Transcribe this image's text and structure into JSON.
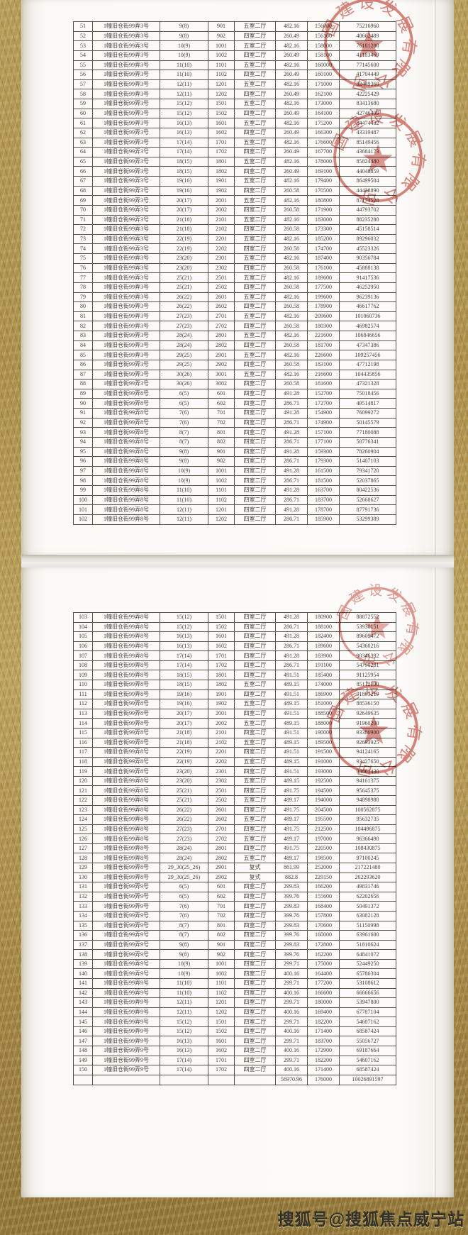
{
  "page1": {
    "table": {
      "rows": [
        [
          "51",
          "1幢旧仓街99弄3号",
          "9(8)",
          "901",
          "五室二厅",
          "482.16",
          "156000",
          "75216960"
        ],
        [
          "52",
          "1幢旧仓街99弄3号",
          "9(8)",
          "902",
          "四室二厅",
          "260.49",
          "156100",
          "40662489"
        ],
        [
          "53",
          "1幢旧仓街99弄3号",
          "10(9)",
          "1001",
          "五室二厅",
          "482.16",
          "158000",
          "76181280"
        ],
        [
          "54",
          "1幢旧仓街99弄3号",
          "10(9)",
          "1002",
          "四室二厅",
          "260.49",
          "158100",
          "41183469"
        ],
        [
          "55",
          "1幢旧仓街99弄3号",
          "11(10)",
          "1101",
          "五室二厅",
          "482.16",
          "160000",
          "77145600"
        ],
        [
          "56",
          "1幢旧仓街99弄3号",
          "11(10)",
          "1102",
          "四室二厅",
          "260.49",
          "160100",
          "41704449"
        ],
        [
          "57",
          "1幢旧仓街99弄3号",
          "12(11)",
          "1201",
          "五室二厅",
          "482.16",
          "171000",
          "82449360"
        ],
        [
          "58",
          "1幢旧仓街99弄3号",
          "12(11)",
          "1202",
          "四室二厅",
          "260.49",
          "162100",
          "42225429"
        ],
        [
          "59",
          "1幢旧仓街99弄3号",
          "15(12)",
          "1501",
          "五室二厅",
          "482.16",
          "173000",
          "83413680"
        ],
        [
          "60",
          "1幢旧仓街99弄3号",
          "15(12)",
          "1502",
          "四室二厅",
          "260.49",
          "164100",
          "42746409"
        ],
        [
          "61",
          "1幢旧仓街99弄3号",
          "16(13)",
          "1601",
          "五室二厅",
          "482.16",
          "175200",
          "84474432"
        ],
        [
          "62",
          "1幢旧仓街99弄3号",
          "16(13)",
          "1602",
          "四室二厅",
          "260.49",
          "166300",
          "43319487"
        ],
        [
          "63",
          "1幢旧仓街99弄3号",
          "17(14)",
          "1701",
          "五室二厅",
          "482.16",
          "176600",
          "85149456"
        ],
        [
          "64",
          "1幢旧仓街99弄3号",
          "17(14)",
          "1702",
          "四室二厅",
          "260.49",
          "167700",
          "43684173"
        ],
        [
          "65",
          "1幢旧仓街99弄3号",
          "18(15)",
          "1801",
          "五室二厅",
          "482.16",
          "178000",
          "85824480"
        ],
        [
          "66",
          "1幢旧仓街99弄3号",
          "18(15)",
          "1802",
          "四室二厅",
          "260.49",
          "169100",
          "44048859"
        ],
        [
          "67",
          "1幢旧仓街99弄3号",
          "19(16)",
          "1901",
          "五室二厅",
          "482.16",
          "179400",
          "86499504"
        ],
        [
          "68",
          "1幢旧仓街99弄3号",
          "19(16)",
          "1902",
          "四室二厅",
          "260.58",
          "170500",
          "44428890"
        ],
        [
          "69",
          "1幢旧仓街99弄3号",
          "20(17)",
          "2001",
          "五室二厅",
          "482.16",
          "180800",
          "87174528"
        ],
        [
          "70",
          "1幢旧仓街99弄3号",
          "20(17)",
          "2002",
          "四室二厅",
          "260.58",
          "171900",
          "44793702"
        ],
        [
          "71",
          "1幢旧仓街99弄3号",
          "21(18)",
          "2101",
          "五室二厅",
          "482.16",
          "183000",
          "88235280"
        ],
        [
          "72",
          "1幢旧仓街99弄3号",
          "21(18)",
          "2102",
          "四室二厅",
          "260.58",
          "173300",
          "45158514"
        ],
        [
          "73",
          "1幢旧仓街99弄3号",
          "22(19)",
          "2201",
          "五室二厅",
          "482.16",
          "185200",
          "89296032"
        ],
        [
          "74",
          "1幢旧仓街99弄3号",
          "22(19)",
          "2202",
          "四室二厅",
          "260.58",
          "174700",
          "45523326"
        ],
        [
          "75",
          "1幢旧仓街99弄3号",
          "23(20)",
          "2301",
          "五室二厅",
          "482.16",
          "187400",
          "90356784"
        ],
        [
          "76",
          "1幢旧仓街99弄3号",
          "23(20)",
          "2302",
          "四室二厅",
          "260.58",
          "176100",
          "45888138"
        ],
        [
          "77",
          "1幢旧仓街99弄3号",
          "25(21)",
          "2501",
          "五室二厅",
          "482.16",
          "189600",
          "91417536"
        ],
        [
          "78",
          "1幢旧仓街99弄3号",
          "25(21)",
          "2502",
          "四室二厅",
          "260.58",
          "177500",
          "46252950"
        ],
        [
          "79",
          "1幢旧仓街99弄3号",
          "26(22)",
          "2601",
          "五室二厅",
          "482.16",
          "199600",
          "96239136"
        ],
        [
          "80",
          "1幢旧仓街99弄3号",
          "26(22)",
          "2602",
          "四室二厅",
          "260.58",
          "178900",
          "46617762"
        ],
        [
          "81",
          "1幢旧仓街99弄3号",
          "27(23)",
          "2701",
          "五室二厅",
          "482.16",
          "209600",
          "101060736"
        ],
        [
          "82",
          "1幢旧仓街99弄3号",
          "27(23)",
          "2702",
          "四室二厅",
          "260.58",
          "180300",
          "46982574"
        ],
        [
          "83",
          "1幢旧仓街99弄3号",
          "28(24)",
          "2801",
          "五室二厅",
          "482.16",
          "221600",
          "106846656"
        ],
        [
          "84",
          "1幢旧仓街99弄3号",
          "28(24)",
          "2802",
          "四室二厅",
          "260.58",
          "181700",
          "47347386"
        ],
        [
          "85",
          "1幢旧仓街99弄3号",
          "29(25)",
          "2901",
          "五室二厅",
          "482.16",
          "226600",
          "109257456"
        ],
        [
          "86",
          "1幢旧仓街99弄3号",
          "29(25)",
          "2902",
          "四室二厅",
          "260.58",
          "183100",
          "47712198"
        ],
        [
          "87",
          "1幢旧仓街99弄3号",
          "30(26)",
          "3001",
          "五室二厅",
          "482.16",
          "216600",
          "104435856"
        ],
        [
          "88",
          "1幢旧仓街99弄3号",
          "30(26)",
          "3002",
          "四室二厅",
          "260.58",
          "181600",
          "47321328"
        ],
        [
          "89",
          "1幢旧仓街99弄8号",
          "6(5)",
          "601",
          "四室二厅",
          "491.28",
          "152700",
          "75018456"
        ],
        [
          "90",
          "1幢旧仓街99弄8号",
          "6(5)",
          "602",
          "四室二厅",
          "286.71",
          "172700",
          "49514817"
        ],
        [
          "91",
          "1幢旧仓街99弄8号",
          "7(6)",
          "701",
          "四室二厅",
          "491.28",
          "154900",
          "76099272"
        ],
        [
          "92",
          "1幢旧仓街99弄8号",
          "7(6)",
          "702",
          "四室二厅",
          "286.71",
          "174900",
          "50145579"
        ],
        [
          "93",
          "1幢旧仓街99弄8号",
          "8(7)",
          "801",
          "四室二厅",
          "491.28",
          "157100",
          "77180088"
        ],
        [
          "94",
          "1幢旧仓街99弄8号",
          "8(7)",
          "802",
          "四室二厅",
          "286.71",
          "177100",
          "50776341"
        ],
        [
          "95",
          "1幢旧仓街99弄8号",
          "9(8)",
          "901",
          "四室二厅",
          "491.28",
          "159300",
          "78260904"
        ],
        [
          "96",
          "1幢旧仓街99弄8号",
          "9(8)",
          "902",
          "四室二厅",
          "286.71",
          "179300",
          "51407103"
        ],
        [
          "97",
          "1幢旧仓街99弄8号",
          "10(9)",
          "1001",
          "四室二厅",
          "491.28",
          "161500",
          "79341720"
        ],
        [
          "98",
          "1幢旧仓街99弄8号",
          "10(9)",
          "1002",
          "四室二厅",
          "286.71",
          "181500",
          "52037865"
        ],
        [
          "99",
          "1幢旧仓街99弄8号",
          "11(10)",
          "1101",
          "四室二厅",
          "491.28",
          "163700",
          "80422536"
        ],
        [
          "100",
          "1幢旧仓街99弄8号",
          "11(10)",
          "1102",
          "四室二厅",
          "286.71",
          "183700",
          "52668627"
        ],
        [
          "101",
          "1幢旧仓街99弄8号",
          "12(11)",
          "1201",
          "四室二厅",
          "491.28",
          "178700",
          "87791736"
        ],
        [
          "102",
          "1幢旧仓街99弄8号",
          "12(11)",
          "1202",
          "四室二厅",
          "286.71",
          "185900",
          "53299389"
        ]
      ]
    }
  },
  "page2": {
    "table": {
      "rows": [
        [
          "103",
          "1幢旧仓街99弄8号",
          "15(12)",
          "1501",
          "四室二厅",
          "491.28",
          "180900",
          "88872552"
        ],
        [
          "104",
          "1幢旧仓街99弄8号",
          "15(12)",
          "1502",
          "四室二厅",
          "286.71",
          "188100",
          "53930151"
        ],
        [
          "105",
          "1幢旧仓街99弄8号",
          "16(13)",
          "1601",
          "四室二厅",
          "491.28",
          "182400",
          "89609472"
        ],
        [
          "106",
          "1幢旧仓街99弄8号",
          "16(13)",
          "1602",
          "四室二厅",
          "286.71",
          "189600",
          "54360216"
        ],
        [
          "107",
          "1幢旧仓街99弄8号",
          "17(14)",
          "1701",
          "四室二厅",
          "491.28",
          "183900",
          "90346392"
        ],
        [
          "108",
          "1幢旧仓街99弄8号",
          "17(14)",
          "1702",
          "四室二厅",
          "286.71",
          "191100",
          "54790281"
        ],
        [
          "109",
          "1幢旧仓街99弄8号",
          "18(15)",
          "1801",
          "四室二厅",
          "491.51",
          "185400",
          "91125954"
        ],
        [
          "110",
          "1幢旧仓街99弄8号",
          "18(15)",
          "1802",
          "五室二厅",
          "489.15",
          "174000",
          "85112100"
        ],
        [
          "111",
          "1幢旧仓街99弄8号",
          "19(16)",
          "1901",
          "四室二厅",
          "491.51",
          "186900",
          "91863219"
        ],
        [
          "112",
          "1幢旧仓街99弄8号",
          "19(16)",
          "1902",
          "五室二厅",
          "489.15",
          "181000",
          "88536150"
        ],
        [
          "113",
          "1幢旧仓街99弄8号",
          "20(17)",
          "2001",
          "四室二厅",
          "491.51",
          "188500",
          "92649635"
        ],
        [
          "114",
          "1幢旧仓街99弄8号",
          "20(17)",
          "2002",
          "五室二厅",
          "489.15",
          "188000",
          "91960200"
        ],
        [
          "115",
          "1幢旧仓街99弄8号",
          "21(18)",
          "2101",
          "四室二厅",
          "491.51",
          "190000",
          "93386900"
        ],
        [
          "116",
          "1幢旧仓街99弄8号",
          "21(18)",
          "2102",
          "五室二厅",
          "489.15",
          "189500",
          "92693925"
        ],
        [
          "117",
          "1幢旧仓街99弄8号",
          "22(19)",
          "2201",
          "四室二厅",
          "491.51",
          "191500",
          "94124165"
        ],
        [
          "118",
          "1幢旧仓街99弄8号",
          "22(19)",
          "2202",
          "五室二厅",
          "489.15",
          "191000",
          "93427650"
        ],
        [
          "119",
          "1幢旧仓街99弄8号",
          "23(20)",
          "2301",
          "四室二厅",
          "491.51",
          "193000",
          "94861430"
        ],
        [
          "120",
          "1幢旧仓街99弄8号",
          "23(20)",
          "2302",
          "五室二厅",
          "489.15",
          "192500",
          "94161375"
        ],
        [
          "121",
          "1幢旧仓街99弄8号",
          "25(21)",
          "2501",
          "四室二厅",
          "491.75",
          "194500",
          "95645375"
        ],
        [
          "122",
          "1幢旧仓街99弄8号",
          "25(21)",
          "2502",
          "五室二厅",
          "489.17",
          "194000",
          "94898980"
        ],
        [
          "123",
          "1幢旧仓街99弄8号",
          "26(22)",
          "2601",
          "四室二厅",
          "491.75",
          "204500",
          "100562875"
        ],
        [
          "124",
          "1幢旧仓街99弄8号",
          "26(22)",
          "2602",
          "五室二厅",
          "489.17",
          "195500",
          "95632735"
        ],
        [
          "125",
          "1幢旧仓街99弄8号",
          "27(23)",
          "2701",
          "四室二厅",
          "491.75",
          "212500",
          "104496875"
        ],
        [
          "126",
          "1幢旧仓街99弄8号",
          "27(23)",
          "2702",
          "五室二厅",
          "489.17",
          "197000",
          "96366490"
        ],
        [
          "127",
          "1幢旧仓街99弄8号",
          "28(24)",
          "2801",
          "四室二厅",
          "491.75",
          "220500",
          "108430875"
        ],
        [
          "128",
          "1幢旧仓街99弄8号",
          "28(24)",
          "2802",
          "五室二厅",
          "489.17",
          "198500",
          "97100245"
        ],
        [
          "129",
          "1幢旧仓街99弄8号",
          "29_30(25_26)",
          "2901",
          "复式",
          "861.99",
          "252000",
          "217221480"
        ],
        [
          "130",
          "1幢旧仓街99弄8号",
          "29_30(25_26)",
          "2902",
          "复式",
          "882.8",
          "229150",
          "202293620"
        ],
        [
          "131",
          "1幢旧仓街99弄9号",
          "6(5)",
          "601",
          "四室二厅",
          "299.83",
          "166200",
          "49831746"
        ],
        [
          "132",
          "1幢旧仓街99弄9号",
          "6(5)",
          "602",
          "四室二厅",
          "399.76",
          "155600",
          "62202656"
        ],
        [
          "133",
          "1幢旧仓街99弄9号",
          "7(6)",
          "701",
          "四室二厅",
          "299.83",
          "168400",
          "50491372"
        ],
        [
          "134",
          "1幢旧仓街99弄9号",
          "7(6)",
          "702",
          "四室二厅",
          "399.76",
          "157800",
          "63082128"
        ],
        [
          "135",
          "1幢旧仓街99弄9号",
          "8(7)",
          "801",
          "四室二厅",
          "299.83",
          "170600",
          "51150998"
        ],
        [
          "136",
          "1幢旧仓街99弄9号",
          "8(7)",
          "802",
          "四室二厅",
          "399.76",
          "160000",
          "63961600"
        ],
        [
          "137",
          "1幢旧仓街99弄9号",
          "9(8)",
          "901",
          "四室二厅",
          "299.83",
          "172800",
          "51810624"
        ],
        [
          "138",
          "1幢旧仓街99弄9号",
          "9(8)",
          "902",
          "四室二厅",
          "399.76",
          "162200",
          "64841072"
        ],
        [
          "139",
          "1幢旧仓街99弄9号",
          "10(9)",
          "1001",
          "四室二厅",
          "299.71",
          "175000",
          "52449250"
        ],
        [
          "140",
          "1幢旧仓街99弄9号",
          "10(9)",
          "1002",
          "四室二厅",
          "400.16",
          "164400",
          "65786304"
        ],
        [
          "141",
          "1幢旧仓街99弄9号",
          "11(10)",
          "1101",
          "四室二厅",
          "299.71",
          "177200",
          "53108612"
        ],
        [
          "142",
          "1幢旧仓街99弄9号",
          "11(10)",
          "1102",
          "四室二厅",
          "400.16",
          "166600",
          "66666656"
        ],
        [
          "143",
          "1幢旧仓街99弄9号",
          "12(11)",
          "1201",
          "四室二厅",
          "299.71",
          "180000",
          "53947800"
        ],
        [
          "144",
          "1幢旧仓街99弄9号",
          "12(11)",
          "1202",
          "四室二厅",
          "400.16",
          "169400",
          "67787104"
        ],
        [
          "145",
          "1幢旧仓街99弄9号",
          "15(12)",
          "1501",
          "四室二厅",
          "299.71",
          "182200",
          "54607162"
        ],
        [
          "146",
          "1幢旧仓街99弄9号",
          "15(12)",
          "1502",
          "四室二厅",
          "400.16",
          "171400",
          "68587424"
        ],
        [
          "147",
          "1幢旧仓街99弄9号",
          "16(13)",
          "1601",
          "四室二厅",
          "299.71",
          "183700",
          "55056727"
        ],
        [
          "148",
          "1幢旧仓街99弄9号",
          "16(13)",
          "1602",
          "四室二厅",
          "400.16",
          "172900",
          "69187664"
        ],
        [
          "149",
          "1幢旧仓街99弄9号",
          "17(14)",
          "1701",
          "四室二厅",
          "299.71",
          "182200",
          "54607162"
        ],
        [
          "150",
          "1幢旧仓街99弄9号",
          "17(14)",
          "1702",
          "四室二厅",
          "400.16",
          "171400",
          "68587424"
        ]
      ],
      "total_row": [
        "",
        "",
        "",
        "",
        "",
        "56970.96",
        "176000",
        "10026891597"
      ]
    }
  },
  "stamps": {
    "arc_text": "国建设发展有限公司",
    "color": "#c23b2e"
  },
  "watermark": {
    "text": "搜狐号@搜狐焦点威宁站"
  },
  "colors": {
    "background_gold": "#ab8f4c",
    "paper": "#fbfaf7",
    "ink": "#45433c",
    "seal_red": "#c23b2e"
  }
}
